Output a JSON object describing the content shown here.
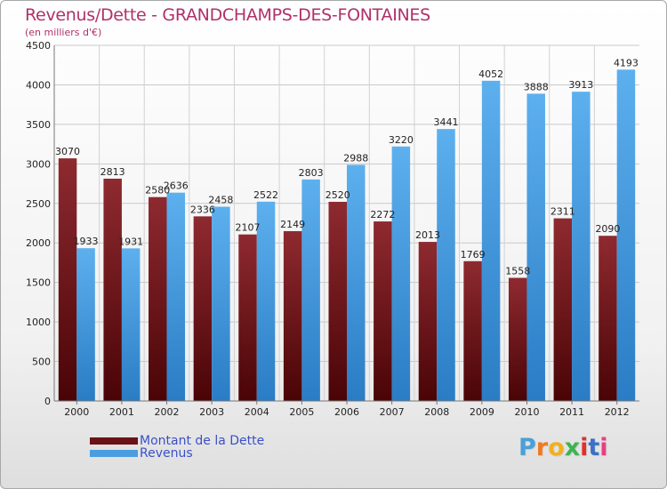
{
  "title": "Revenus/Dette - GRANDCHAMPS-DES-FONTAINES",
  "subtitle": "(en milliers d'€)",
  "logo": {
    "letters": [
      "P",
      "r",
      "o",
      "x",
      "i",
      "t",
      "i"
    ],
    "colors": [
      "#4aa0d8",
      "#f07a20",
      "#f2b020",
      "#3cb450",
      "#e0302c",
      "#3a70c8",
      "#e84080"
    ]
  },
  "chart_data": {
    "type": "bar",
    "categories": [
      "2000",
      "2001",
      "2002",
      "2003",
      "2004",
      "2005",
      "2006",
      "2007",
      "2008",
      "2009",
      "2010",
      "2011",
      "2012"
    ],
    "series": [
      {
        "name": "Montant de la Dette",
        "color": "#6a1216",
        "values": [
          3070,
          2813,
          2580,
          2336,
          2107,
          2149,
          2520,
          2272,
          2013,
          1769,
          1558,
          2311,
          2090
        ]
      },
      {
        "name": "Revenus",
        "color": "#4a9ee0",
        "values": [
          1933,
          1931,
          2636,
          2458,
          2522,
          2803,
          2988,
          3220,
          3441,
          4052,
          3888,
          3913,
          4193
        ]
      }
    ],
    "ylim": [
      0,
      4500
    ],
    "yticks": [
      0,
      500,
      1000,
      1500,
      2000,
      2500,
      3000,
      3500,
      4000,
      4500
    ],
    "grid": true,
    "legend": "bottom-left"
  }
}
